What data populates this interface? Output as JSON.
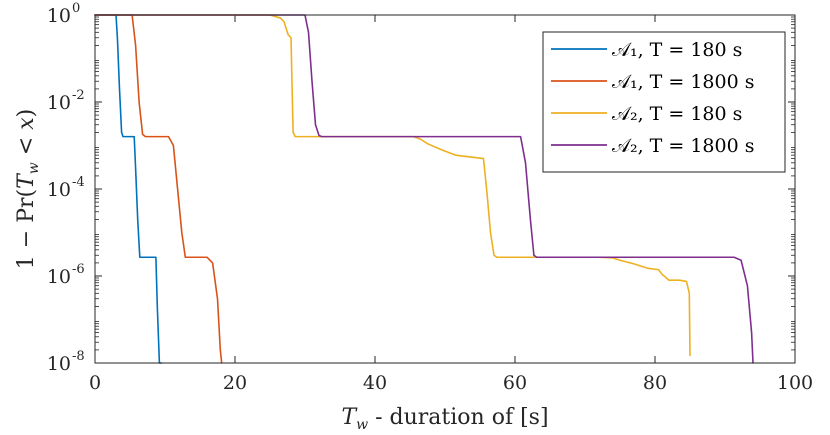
{
  "chart_data": {
    "type": "line",
    "title": "",
    "xlabel": "T_w - duration of [s]",
    "ylabel": "1 − Pr(T_w < x)",
    "x_scale": "linear",
    "y_scale": "log",
    "xlim": [
      0,
      100
    ],
    "ylim": [
      1e-08,
      1
    ],
    "grid": false,
    "legend_position": "top-right",
    "x_ticks": [
      0,
      20,
      40,
      60,
      80,
      100
    ],
    "x_tick_labels": [
      "0",
      "20",
      "40",
      "60",
      "80",
      "100"
    ],
    "y_ticks": [
      1,
      0.01,
      0.0001,
      1e-06,
      1e-08
    ],
    "y_tick_labels": [
      {
        "base": "10",
        "exp": "0"
      },
      {
        "base": "10",
        "exp": "-2"
      },
      {
        "base": "10",
        "exp": "-4"
      },
      {
        "base": "10",
        "exp": "-6"
      },
      {
        "base": "10",
        "exp": "-8"
      }
    ],
    "series": [
      {
        "name": "A1, T = 180 s",
        "legend_label": "𝒜₁, T = 180 s",
        "color": "#0072BD",
        "x": [
          0,
          3.0,
          3.2,
          3.5,
          3.8,
          4.0,
          5.6,
          5.8,
          6.1,
          6.4,
          8.7,
          8.9,
          9.2,
          9.5
        ],
        "y": [
          1,
          1,
          0.3,
          0.02,
          0.002,
          0.0016,
          0.0016,
          0.0003,
          2e-05,
          2.7e-06,
          2.7e-06,
          2e-07,
          1e-08,
          1e-08
        ]
      },
      {
        "name": "A1, T = 1800 s",
        "legend_label": "𝒜₁, T = 1800 s",
        "color": "#D95319",
        "x": [
          0,
          5.3,
          5.8,
          6.3,
          6.8,
          7.2,
          10.5,
          11.2,
          11.8,
          12.4,
          12.9,
          16.0,
          16.8,
          17.5,
          17.9,
          18.1
        ],
        "y": [
          1,
          1,
          0.2,
          0.01,
          0.0018,
          0.0016,
          0.0016,
          0.001,
          0.0001,
          1e-05,
          2.7e-06,
          2.7e-06,
          2e-06,
          3e-07,
          2e-08,
          1e-08
        ]
      },
      {
        "name": "A2, T = 180 s",
        "legend_label": "𝒜₂, T = 180 s",
        "color": "#EDB120",
        "x": [
          0,
          25.0,
          26.5,
          27.0,
          27.6,
          28.0,
          28.3,
          28.6,
          45.5,
          46.5,
          47.5,
          49.5,
          51.5,
          55.5,
          56.0,
          56.5,
          57.0,
          57.4,
          72.0,
          74.0,
          75.0,
          77.0,
          79.0,
          80.5,
          81.0,
          82.0,
          83.5,
          84.5,
          84.9,
          85.0
        ],
        "y": [
          1,
          1,
          0.85,
          0.7,
          0.35,
          0.3,
          0.002,
          0.0016,
          0.0016,
          0.0014,
          0.0011,
          0.0008,
          0.0006,
          0.0005,
          8e-05,
          1e-05,
          3e-06,
          2.7e-06,
          2.7e-06,
          2.6e-06,
          2.3e-06,
          1.9e-06,
          1.5e-06,
          1.4e-06,
          1.1e-06,
          8e-07,
          8e-07,
          7.5e-07,
          4e-07,
          1.5e-08
        ]
      },
      {
        "name": "A2, T = 1800 s",
        "legend_label": "𝒜₂, T = 1800 s",
        "color": "#7E2F8E",
        "x": [
          0,
          30.0,
          30.5,
          31.0,
          31.5,
          32.0,
          32.4,
          60.8,
          61.5,
          62.2,
          62.7,
          63.1,
          91.3,
          92.3,
          93.2,
          93.8,
          94.0
        ],
        "y": [
          1,
          1,
          0.4,
          0.03,
          0.003,
          0.0017,
          0.0016,
          0.0016,
          0.0004,
          2e-05,
          3e-06,
          2.7e-06,
          2.7e-06,
          2.3e-06,
          6e-07,
          5e-08,
          1e-08
        ]
      }
    ]
  }
}
